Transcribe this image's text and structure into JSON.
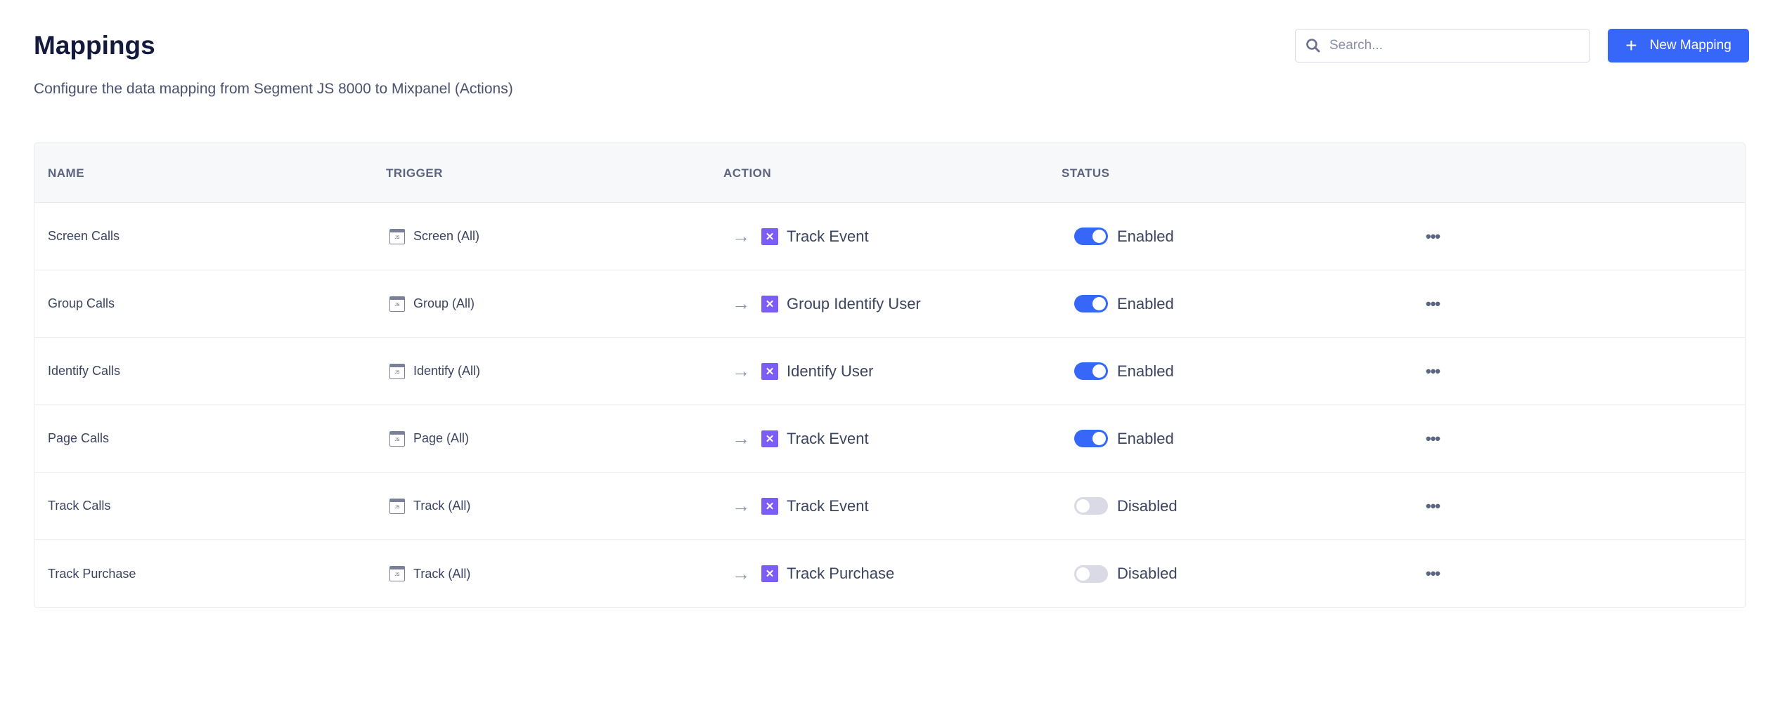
{
  "header": {
    "title": "Mappings",
    "subtitle": "Configure the data mapping from Segment JS 8000 to Mixpanel (Actions)",
    "search_placeholder": "Search...",
    "new_button": "New Mapping"
  },
  "table": {
    "columns": [
      "NAME",
      "TRIGGER",
      "ACTION",
      "STATUS"
    ],
    "rows": [
      {
        "name": "Screen Calls",
        "trigger": "Screen (All)",
        "action": "Track Event",
        "enabled": true,
        "status": "Enabled"
      },
      {
        "name": "Group Calls",
        "trigger": "Group (All)",
        "action": "Group Identify User",
        "enabled": true,
        "status": "Enabled"
      },
      {
        "name": "Identify Calls",
        "trigger": "Identify (All)",
        "action": "Identify User",
        "enabled": true,
        "status": "Enabled"
      },
      {
        "name": "Page Calls",
        "trigger": "Page (All)",
        "action": "Track Event",
        "enabled": true,
        "status": "Enabled"
      },
      {
        "name": "Track Calls",
        "trigger": "Track (All)",
        "action": "Track Event",
        "enabled": false,
        "status": "Disabled"
      },
      {
        "name": "Track Purchase",
        "trigger": "Track (All)",
        "action": "Track Purchase",
        "enabled": false,
        "status": "Disabled"
      }
    ]
  },
  "colors": {
    "accent": "#3767f8",
    "mixpanel_icon": "#7b5cf4",
    "toggle_off": "#d9dae6"
  }
}
